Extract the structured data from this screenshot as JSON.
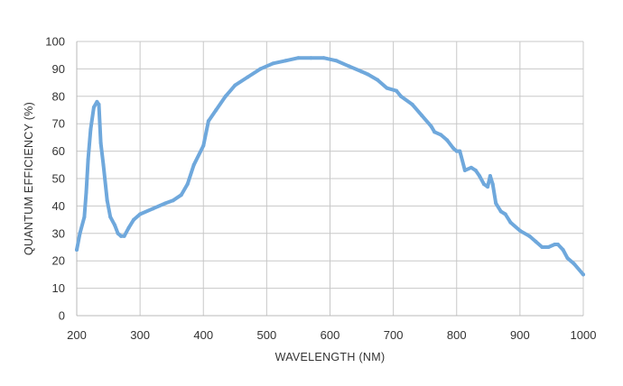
{
  "chart_data": {
    "type": "line",
    "title": "",
    "xlabel": "WAVELENGTH (NM)",
    "ylabel": "QUANTUM EFFICIENCY (%)",
    "xlim": [
      200,
      1000
    ],
    "ylim": [
      0,
      100
    ],
    "x_ticks": [
      "200",
      "300",
      "400",
      "500",
      "600",
      "700",
      "800",
      "900",
      "1000"
    ],
    "y_ticks": [
      "0",
      "10",
      "20",
      "30",
      "40",
      "50",
      "60",
      "70",
      "80",
      "90",
      "100"
    ],
    "grid": true,
    "legend": "none",
    "series": [
      {
        "color": "#6fa8dc",
        "x": [
          200,
          205,
          212,
          215,
          218,
          222,
          227,
          232,
          235,
          238,
          242,
          248,
          253,
          260,
          265,
          270,
          275,
          282,
          290,
          300,
          320,
          340,
          352,
          365,
          375,
          385,
          400,
          408,
          420,
          435,
          450,
          470,
          490,
          510,
          530,
          550,
          570,
          590,
          610,
          630,
          650,
          660,
          675,
          690,
          705,
          712,
          730,
          745,
          760,
          765,
          775,
          785,
          795,
          800,
          805,
          813,
          823,
          830,
          836,
          843,
          849,
          853,
          857,
          862,
          870,
          877,
          885,
          900,
          915,
          925,
          935,
          945,
          955,
          960,
          968,
          975,
          985,
          1000
        ],
        "y": [
          24,
          30,
          36,
          45,
          57,
          68,
          76,
          78,
          77,
          63,
          55,
          42,
          36,
          33,
          30,
          29,
          29,
          32,
          35,
          37,
          39,
          41,
          42,
          44,
          48,
          55,
          62,
          71,
          75,
          80,
          84,
          87,
          90,
          92,
          93,
          94,
          94,
          94,
          93,
          91,
          89,
          88,
          86,
          83,
          82,
          80,
          77,
          73,
          69,
          67,
          66,
          64,
          61,
          60,
          60,
          53,
          54,
          53,
          51,
          48,
          47,
          51,
          48,
          41,
          38,
          37,
          34,
          31,
          29,
          27,
          25,
          25,
          26,
          26,
          24,
          21,
          19,
          15
        ]
      }
    ]
  }
}
